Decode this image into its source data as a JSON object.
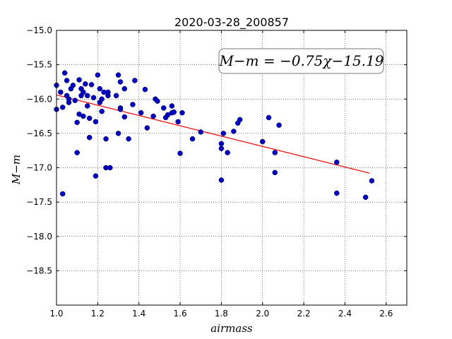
{
  "chart_data": {
    "type": "scatter",
    "title": "2020-03-28_200857",
    "xlabel": "airmass",
    "ylabel": "M−m",
    "xlim": [
      1.0,
      2.7
    ],
    "ylim": [
      -19.0,
      -15.0
    ],
    "y_inverted": true,
    "grid": true,
    "x_ticks": [
      "1.0",
      "1.2",
      "1.4",
      "1.6",
      "1.8",
      "2.0",
      "2.2",
      "2.4",
      "2.6"
    ],
    "y_ticks": [
      "−15.0",
      "−15.5",
      "−16.0",
      "−16.5",
      "−17.0",
      "−17.5",
      "−18.0",
      "−18.5"
    ],
    "annotation": "M−m = −0.75χ−15.19",
    "fit_line": {
      "slope": -0.75,
      "intercept": -15.19,
      "x_range": [
        1.0,
        2.52
      ],
      "color": "#ff0000"
    },
    "point_color": "#0000cc",
    "points": [
      [
        1.0,
        -15.8
      ],
      [
        1.0,
        -16.15
      ],
      [
        1.02,
        -15.9
      ],
      [
        1.03,
        -16.12
      ],
      [
        1.03,
        -17.38
      ],
      [
        1.04,
        -15.62
      ],
      [
        1.05,
        -15.73
      ],
      [
        1.05,
        -15.95
      ],
      [
        1.06,
        -16.05
      ],
      [
        1.06,
        -16.0
      ],
      [
        1.07,
        -15.85
      ],
      [
        1.08,
        -15.8
      ],
      [
        1.09,
        -16.02
      ],
      [
        1.1,
        -16.34
      ],
      [
        1.1,
        -16.78
      ],
      [
        1.11,
        -16.22
      ],
      [
        1.11,
        -15.72
      ],
      [
        1.12,
        -15.85
      ],
      [
        1.12,
        -15.95
      ],
      [
        1.13,
        -16.25
      ],
      [
        1.13,
        -15.9
      ],
      [
        1.14,
        -15.78
      ],
      [
        1.15,
        -16.1
      ],
      [
        1.15,
        -15.95
      ],
      [
        1.16,
        -16.56
      ],
      [
        1.16,
        -16.28
      ],
      [
        1.17,
        -15.79
      ],
      [
        1.18,
        -15.98
      ],
      [
        1.19,
        -16.33
      ],
      [
        1.19,
        -17.12
      ],
      [
        1.2,
        -15.65
      ],
      [
        1.21,
        -16.05
      ],
      [
        1.21,
        -15.85
      ],
      [
        1.22,
        -16.0
      ],
      [
        1.22,
        -16.18
      ],
      [
        1.23,
        -15.9
      ],
      [
        1.24,
        -16.58
      ],
      [
        1.24,
        -17.0
      ],
      [
        1.25,
        -15.95
      ],
      [
        1.25,
        -15.9
      ],
      [
        1.26,
        -17.0
      ],
      [
        1.29,
        -15.95
      ],
      [
        1.3,
        -15.65
      ],
      [
        1.3,
        -16.5
      ],
      [
        1.31,
        -16.13
      ],
      [
        1.31,
        -15.75
      ],
      [
        1.31,
        -16.15
      ],
      [
        1.33,
        -16.26
      ],
      [
        1.33,
        -15.85
      ],
      [
        1.35,
        -16.58
      ],
      [
        1.37,
        -16.08
      ],
      [
        1.38,
        -15.73
      ],
      [
        1.41,
        -16.2
      ],
      [
        1.43,
        -15.86
      ],
      [
        1.44,
        -16.42
      ],
      [
        1.47,
        -16.25
      ],
      [
        1.48,
        -16.0
      ],
      [
        1.49,
        -16.03
      ],
      [
        1.52,
        -16.13
      ],
      [
        1.53,
        -16.27
      ],
      [
        1.54,
        -16.23
      ],
      [
        1.56,
        -16.1
      ],
      [
        1.56,
        -16.2
      ],
      [
        1.57,
        -16.19
      ],
      [
        1.59,
        -16.33
      ],
      [
        1.6,
        -16.79
      ],
      [
        1.61,
        -16.2
      ],
      [
        1.66,
        -16.58
      ],
      [
        1.7,
        -16.48
      ],
      [
        1.8,
        -16.72
      ],
      [
        1.8,
        -16.65
      ],
      [
        1.8,
        -17.18
      ],
      [
        1.81,
        -16.5
      ],
      [
        1.83,
        -16.78
      ],
      [
        1.86,
        -16.47
      ],
      [
        1.88,
        -16.35
      ],
      [
        1.89,
        -16.3
      ],
      [
        2.0,
        -16.62
      ],
      [
        2.03,
        -16.27
      ],
      [
        2.06,
        -16.78
      ],
      [
        2.06,
        -17.07
      ],
      [
        2.08,
        -16.38
      ],
      [
        2.36,
        -16.92
      ],
      [
        2.36,
        -17.37
      ],
      [
        2.5,
        -17.43
      ],
      [
        2.53,
        -17.19
      ]
    ]
  }
}
